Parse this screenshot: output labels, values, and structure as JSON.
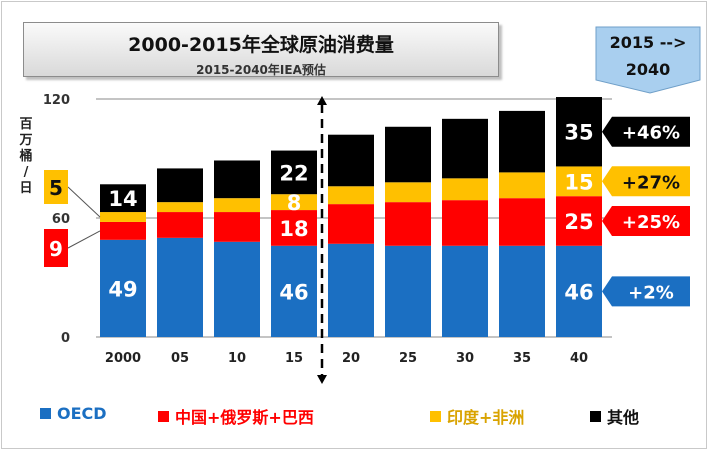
{
  "title": "2000-2015年全球原油消费量",
  "subtitle": "2015-2040年IEA预估",
  "callout_period": {
    "line1": "2015 -->",
    "line2": "2040"
  },
  "chart_data": {
    "type": "bar",
    "stacked": true,
    "categories": [
      "2000",
      "05",
      "10",
      "15",
      "20",
      "25",
      "30",
      "35",
      "40"
    ],
    "ylabel": "百万桶/日",
    "y_ticks": [
      "120",
      "60",
      "0"
    ],
    "ylim": [
      0,
      120
    ],
    "series": [
      {
        "name": "OECD",
        "color": "#1b6fc2",
        "values": [
          49,
          50,
          48,
          46,
          47,
          46,
          46,
          46,
          46
        ]
      },
      {
        "name": "中国+俄罗斯+巴西",
        "color": "#ff0000",
        "values": [
          9,
          13,
          15,
          18,
          20,
          22,
          23,
          24,
          25
        ]
      },
      {
        "name": "印度+非洲",
        "color": "#ffc000",
        "values": [
          5,
          5,
          7,
          8,
          9,
          10,
          11,
          13,
          15
        ]
      },
      {
        "name": "其他",
        "color": "#000000",
        "values": [
          14,
          17,
          19,
          22,
          26,
          28,
          30,
          31,
          35
        ]
      }
    ],
    "data_labels": [
      {
        "category": "2000",
        "series": "OECD",
        "text": "49"
      },
      {
        "category": "2000",
        "series": "其他",
        "text": "14"
      },
      {
        "category": "15",
        "series": "OECD",
        "text": "46"
      },
      {
        "category": "15",
        "series": "中国+俄罗斯+巴西",
        "text": "18"
      },
      {
        "category": "15",
        "series": "印度+非洲",
        "text": "8"
      },
      {
        "category": "15",
        "series": "其他",
        "text": "22"
      },
      {
        "category": "40",
        "series": "OECD",
        "text": "46"
      },
      {
        "category": "40",
        "series": "中国+俄罗斯+巴西",
        "text": "25"
      },
      {
        "category": "40",
        "series": "印度+非洲",
        "text": "15"
      },
      {
        "category": "40",
        "series": "其他",
        "text": "35"
      }
    ],
    "side_labels": [
      {
        "series": "印度+非洲",
        "text": "5"
      },
      {
        "series": "中国+俄罗斯+巴西",
        "text": "9"
      }
    ],
    "growth_callouts": [
      {
        "series": "其他",
        "text": "+46%"
      },
      {
        "series": "印度+非洲",
        "text": "+27%"
      },
      {
        "series": "中国+俄罗斯+巴西",
        "text": "+25%"
      },
      {
        "series": "OECD",
        "text": "+2%"
      }
    ],
    "legend": [
      "OECD",
      "中国+俄罗斯+巴西",
      "印度+非洲",
      "其他"
    ],
    "divider_after": "15",
    "legend_position": "bottom"
  }
}
